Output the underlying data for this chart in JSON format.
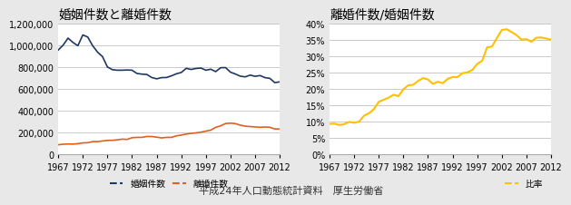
{
  "title_left": "婚姻件数と離婚件数",
  "title_right": "離婚件数/婚姻件数",
  "caption": "平成24年人口動態統計資料　厚生労働省",
  "years": [
    1967,
    1968,
    1969,
    1970,
    1971,
    1972,
    1973,
    1974,
    1975,
    1976,
    1977,
    1978,
    1979,
    1980,
    1981,
    1982,
    1983,
    1984,
    1985,
    1986,
    1987,
    1988,
    1989,
    1990,
    1991,
    1992,
    1993,
    1994,
    1995,
    1996,
    1997,
    1998,
    1999,
    2000,
    2001,
    2002,
    2003,
    2004,
    2005,
    2006,
    2007,
    2008,
    2009,
    2010,
    2011,
    2012
  ],
  "marriages": [
    960000,
    1005000,
    1070000,
    1030000,
    1000000,
    1099000,
    1080000,
    1000000,
    941000,
    900000,
    805000,
    780000,
    775000,
    775000,
    777000,
    775000,
    745000,
    739000,
    736000,
    708000,
    696000,
    707000,
    708000,
    723000,
    742000,
    754000,
    792000,
    782000,
    791000,
    795000,
    775000,
    784000,
    762000,
    798000,
    799000,
    757000,
    740000,
    720000,
    714000,
    730000,
    719000,
    726000,
    707000,
    700000,
    661000,
    668000
  ],
  "divorces": [
    90000,
    95000,
    97000,
    96000,
    100000,
    107000,
    109000,
    119000,
    119000,
    125000,
    130000,
    131000,
    135000,
    142000,
    139000,
    155000,
    158000,
    158000,
    166000,
    166000,
    160000,
    153000,
    158000,
    158000,
    172000,
    179000,
    188000,
    195000,
    199000,
    206000,
    215000,
    225000,
    250000,
    264000,
    285000,
    289000,
    284000,
    270000,
    261000,
    257000,
    254000,
    251000,
    253000,
    251000,
    235000,
    235000
  ],
  "marriage_color": "#1f3864",
  "divorce_color": "#e06020",
  "ratio_color": "#ffc000",
  "bg_color": "#e8e8e8",
  "plot_bg_color": "#ffffff",
  "grid_color": "#c0c0c0",
  "xticks": [
    1967,
    1972,
    1977,
    1982,
    1987,
    1992,
    1997,
    2002,
    2007,
    2012
  ],
  "ylim_left": [
    0,
    1200000
  ],
  "yticks_left": [
    0,
    200000,
    400000,
    600000,
    800000,
    1000000,
    1200000
  ],
  "ylim_right": [
    0.0,
    0.4
  ],
  "yticks_right": [
    0.0,
    0.05,
    0.1,
    0.15,
    0.2,
    0.25,
    0.3,
    0.35,
    0.4
  ],
  "legend_marriage": "婚姻件数",
  "legend_divorce": "離婚件数",
  "legend_ratio": "比率",
  "title_fontsize": 10,
  "tick_fontsize": 7,
  "legend_fontsize": 7,
  "caption_fontsize": 8
}
